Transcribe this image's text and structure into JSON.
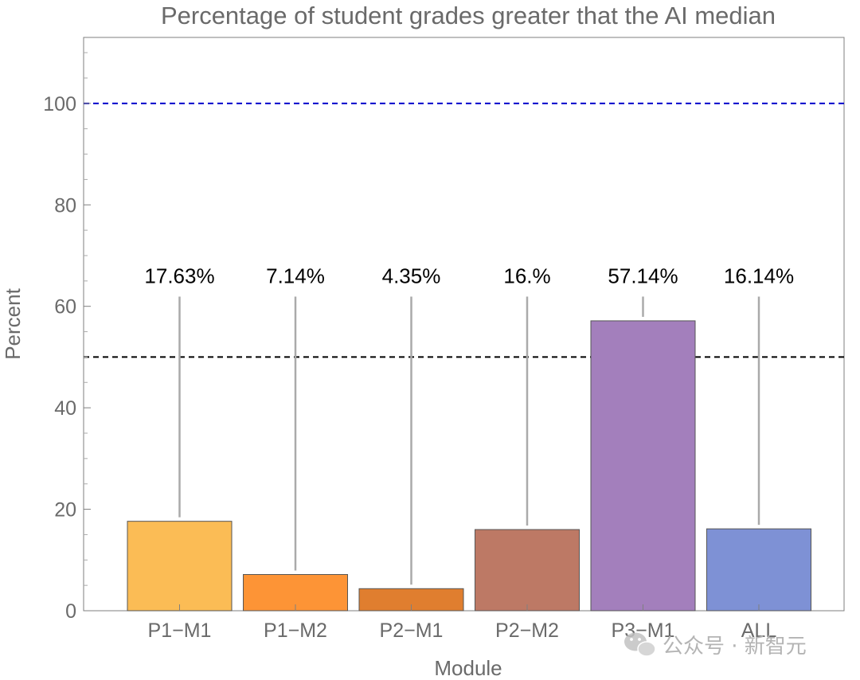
{
  "chart_data": {
    "type": "bar",
    "title": "Percentage of student grades greater that the AI median",
    "xlabel": "Module",
    "ylabel": "Percent",
    "categories": [
      "P1−M1",
      "P1−M2",
      "P2−M1",
      "P2−M2",
      "P3−M1",
      "ALL"
    ],
    "values": [
      17.63,
      7.14,
      4.35,
      16.0,
      57.14,
      16.14
    ],
    "data_labels": [
      "17.63%",
      "7.14%",
      "4.35%",
      "16.%",
      "57.14%",
      "16.14%"
    ],
    "colors": [
      "#fbbc55",
      "#fd9436",
      "#e07e2f",
      "#bd7965",
      "#a37fbc",
      "#7e91d5"
    ],
    "ylim": [
      0,
      113
    ],
    "yticks": [
      0,
      20,
      40,
      60,
      80,
      100
    ],
    "ytick_labels": [
      "0",
      "20",
      "40",
      "60",
      "80",
      "100"
    ],
    "reference_lines": [
      {
        "y": 100,
        "color": "#0000cc",
        "style": "dashed"
      },
      {
        "y": 50,
        "color": "#000000",
        "style": "dashed"
      }
    ],
    "label_y": 66,
    "grid": false,
    "legend": "none"
  },
  "watermark": {
    "text": "公众号 · 新智元",
    "icon": "wechat-icon"
  }
}
